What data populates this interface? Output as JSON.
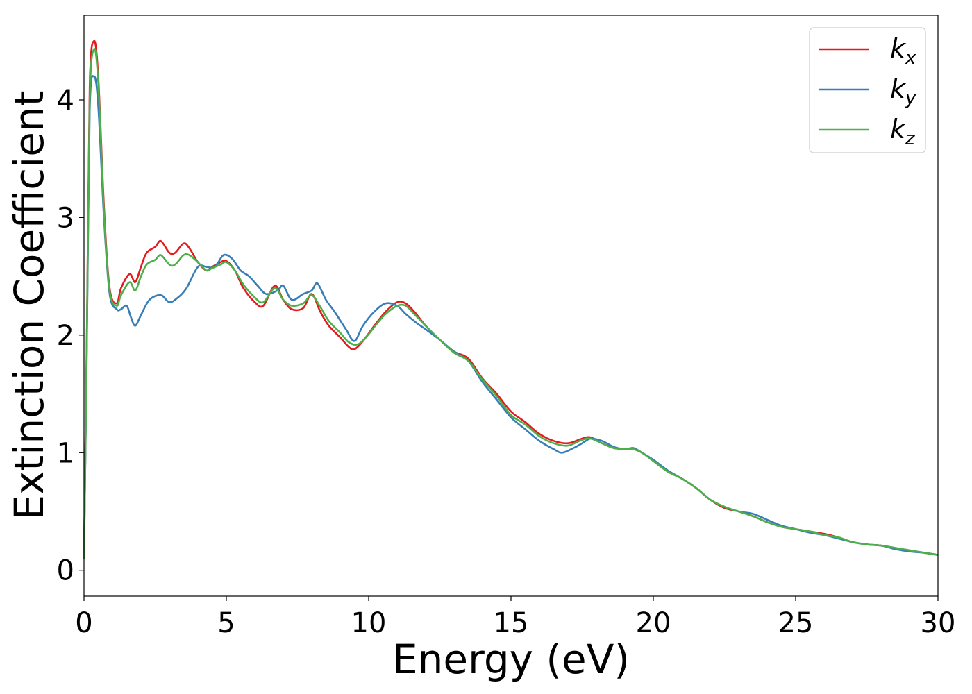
{
  "chart_data": {
    "type": "line",
    "title": "",
    "xlabel": "Energy (eV)",
    "ylabel": "Extinction Coefficient",
    "xlim": [
      0,
      30
    ],
    "ylim": [
      -0.22,
      4.72
    ],
    "xticks": [
      0,
      5,
      10,
      15,
      20,
      25,
      30
    ],
    "yticks": [
      0,
      1,
      2,
      3,
      4
    ],
    "xtick_labels": [
      "0",
      "5",
      "10",
      "15",
      "20",
      "25",
      "30"
    ],
    "ytick_labels": [
      "0",
      "1",
      "2",
      "3",
      "4"
    ],
    "grid": false,
    "legend_position": "top-right",
    "series": [
      {
        "name": "k",
        "subscript": "x",
        "color": "#e41a1c",
        "x": [
          0,
          0.1,
          0.2,
          0.35,
          0.5,
          0.7,
          0.9,
          1.15,
          1.3,
          1.6,
          1.8,
          2.0,
          2.2,
          2.5,
          2.7,
          3.0,
          3.2,
          3.5,
          3.7,
          4.0,
          4.3,
          4.5,
          4.8,
          5.0,
          5.3,
          5.6,
          6.0,
          6.3,
          6.7,
          7.0,
          7.3,
          7.7,
          8.0,
          8.3,
          8.6,
          9.0,
          9.3,
          9.5,
          9.8,
          10.2,
          10.6,
          11.0,
          11.3,
          11.6,
          12.0,
          12.5,
          13.0,
          13.5,
          14.0,
          14.5,
          15.0,
          15.5,
          16.0,
          16.5,
          17.0,
          17.5,
          17.8,
          18.2,
          18.6,
          19.0,
          19.3,
          19.6,
          20.0,
          20.5,
          21.0,
          21.5,
          22.0,
          22.5,
          23.0,
          23.5,
          24.0,
          24.5,
          25.0,
          25.5,
          26.0,
          26.5,
          27.0,
          27.5,
          28.0,
          28.5,
          29.0,
          29.5,
          30.0
        ],
        "y": [
          0.1,
          2.0,
          4.1,
          4.5,
          4.2,
          3.1,
          2.4,
          2.27,
          2.4,
          2.52,
          2.45,
          2.58,
          2.7,
          2.75,
          2.8,
          2.7,
          2.7,
          2.78,
          2.74,
          2.62,
          2.55,
          2.58,
          2.62,
          2.63,
          2.55,
          2.4,
          2.28,
          2.25,
          2.42,
          2.3,
          2.22,
          2.23,
          2.35,
          2.2,
          2.08,
          1.98,
          1.9,
          1.88,
          1.95,
          2.08,
          2.2,
          2.28,
          2.27,
          2.2,
          2.08,
          1.96,
          1.86,
          1.8,
          1.63,
          1.5,
          1.35,
          1.26,
          1.16,
          1.1,
          1.08,
          1.12,
          1.13,
          1.08,
          1.04,
          1.03,
          1.03,
          1.0,
          0.93,
          0.84,
          0.78,
          0.7,
          0.6,
          0.53,
          0.5,
          0.46,
          0.41,
          0.37,
          0.35,
          0.33,
          0.31,
          0.28,
          0.24,
          0.22,
          0.21,
          0.19,
          0.17,
          0.15,
          0.13
        ]
      },
      {
        "name": "k",
        "subscript": "y",
        "color": "#377eb8",
        "x": [
          0,
          0.1,
          0.2,
          0.35,
          0.5,
          0.7,
          0.9,
          1.15,
          1.3,
          1.5,
          1.65,
          1.8,
          2.0,
          2.3,
          2.7,
          3.0,
          3.3,
          3.6,
          4.0,
          4.3,
          4.6,
          4.9,
          5.2,
          5.5,
          5.8,
          6.1,
          6.4,
          6.8,
          7.0,
          7.3,
          7.7,
          8.0,
          8.2,
          8.5,
          8.8,
          9.2,
          9.5,
          9.8,
          10.2,
          10.6,
          11.0,
          11.3,
          11.7,
          12.0,
          12.5,
          13.0,
          13.5,
          14.0,
          14.5,
          15.0,
          15.5,
          16.0,
          16.5,
          16.8,
          17.2,
          17.5,
          17.8,
          18.2,
          18.6,
          19.0,
          19.3,
          19.6,
          20.0,
          20.5,
          21.0,
          21.5,
          22.0,
          22.5,
          23.0,
          23.5,
          24.0,
          24.5,
          25.0,
          25.5,
          26.0,
          26.5,
          27.0,
          27.5,
          28.0,
          28.5,
          29.0,
          29.5,
          30.0
        ],
        "y": [
          0.1,
          1.9,
          3.9,
          4.2,
          3.95,
          3.0,
          2.35,
          2.22,
          2.22,
          2.25,
          2.15,
          2.08,
          2.17,
          2.3,
          2.34,
          2.28,
          2.32,
          2.4,
          2.58,
          2.58,
          2.58,
          2.68,
          2.65,
          2.55,
          2.5,
          2.42,
          2.35,
          2.38,
          2.42,
          2.3,
          2.35,
          2.38,
          2.44,
          2.3,
          2.2,
          2.05,
          1.95,
          2.08,
          2.2,
          2.27,
          2.25,
          2.18,
          2.1,
          2.05,
          1.96,
          1.86,
          1.78,
          1.6,
          1.45,
          1.3,
          1.2,
          1.1,
          1.03,
          1.0,
          1.04,
          1.08,
          1.12,
          1.1,
          1.05,
          1.03,
          1.04,
          1.0,
          0.94,
          0.85,
          0.78,
          0.7,
          0.6,
          0.54,
          0.5,
          0.48,
          0.43,
          0.38,
          0.35,
          0.32,
          0.3,
          0.27,
          0.24,
          0.22,
          0.21,
          0.18,
          0.16,
          0.15,
          0.13
        ]
      },
      {
        "name": "k",
        "subscript": "z",
        "color": "#4daf4a",
        "x": [
          0,
          0.1,
          0.2,
          0.35,
          0.5,
          0.7,
          0.9,
          1.15,
          1.3,
          1.6,
          1.8,
          2.0,
          2.2,
          2.5,
          2.7,
          3.0,
          3.2,
          3.5,
          3.7,
          4.0,
          4.3,
          4.5,
          4.8,
          5.0,
          5.3,
          5.6,
          6.0,
          6.3,
          6.7,
          7.0,
          7.3,
          7.7,
          8.0,
          8.3,
          8.6,
          9.0,
          9.3,
          9.6,
          9.9,
          10.3,
          10.6,
          11.0,
          11.3,
          11.6,
          12.0,
          12.5,
          13.0,
          13.5,
          14.0,
          14.5,
          15.0,
          15.5,
          16.0,
          16.5,
          17.0,
          17.5,
          17.8,
          18.2,
          18.6,
          19.0,
          19.3,
          19.6,
          20.0,
          20.5,
          21.0,
          21.5,
          22.0,
          22.5,
          23.0,
          23.5,
          24.0,
          24.5,
          25.0,
          25.5,
          26.0,
          26.5,
          27.0,
          27.5,
          28.0,
          28.5,
          29.0,
          29.5,
          30.0
        ],
        "y": [
          0.1,
          1.95,
          4.0,
          4.43,
          4.15,
          3.05,
          2.38,
          2.25,
          2.34,
          2.45,
          2.38,
          2.5,
          2.6,
          2.64,
          2.68,
          2.6,
          2.6,
          2.68,
          2.68,
          2.62,
          2.55,
          2.57,
          2.6,
          2.62,
          2.55,
          2.43,
          2.32,
          2.28,
          2.4,
          2.3,
          2.25,
          2.27,
          2.34,
          2.24,
          2.12,
          2.02,
          1.94,
          1.92,
          1.98,
          2.1,
          2.18,
          2.25,
          2.25,
          2.18,
          2.08,
          1.96,
          1.85,
          1.78,
          1.62,
          1.48,
          1.32,
          1.24,
          1.14,
          1.08,
          1.06,
          1.11,
          1.12,
          1.08,
          1.04,
          1.03,
          1.03,
          1.0,
          0.93,
          0.84,
          0.78,
          0.7,
          0.6,
          0.54,
          0.5,
          0.46,
          0.41,
          0.37,
          0.35,
          0.33,
          0.3,
          0.28,
          0.24,
          0.22,
          0.21,
          0.19,
          0.17,
          0.15,
          0.13
        ]
      }
    ]
  }
}
